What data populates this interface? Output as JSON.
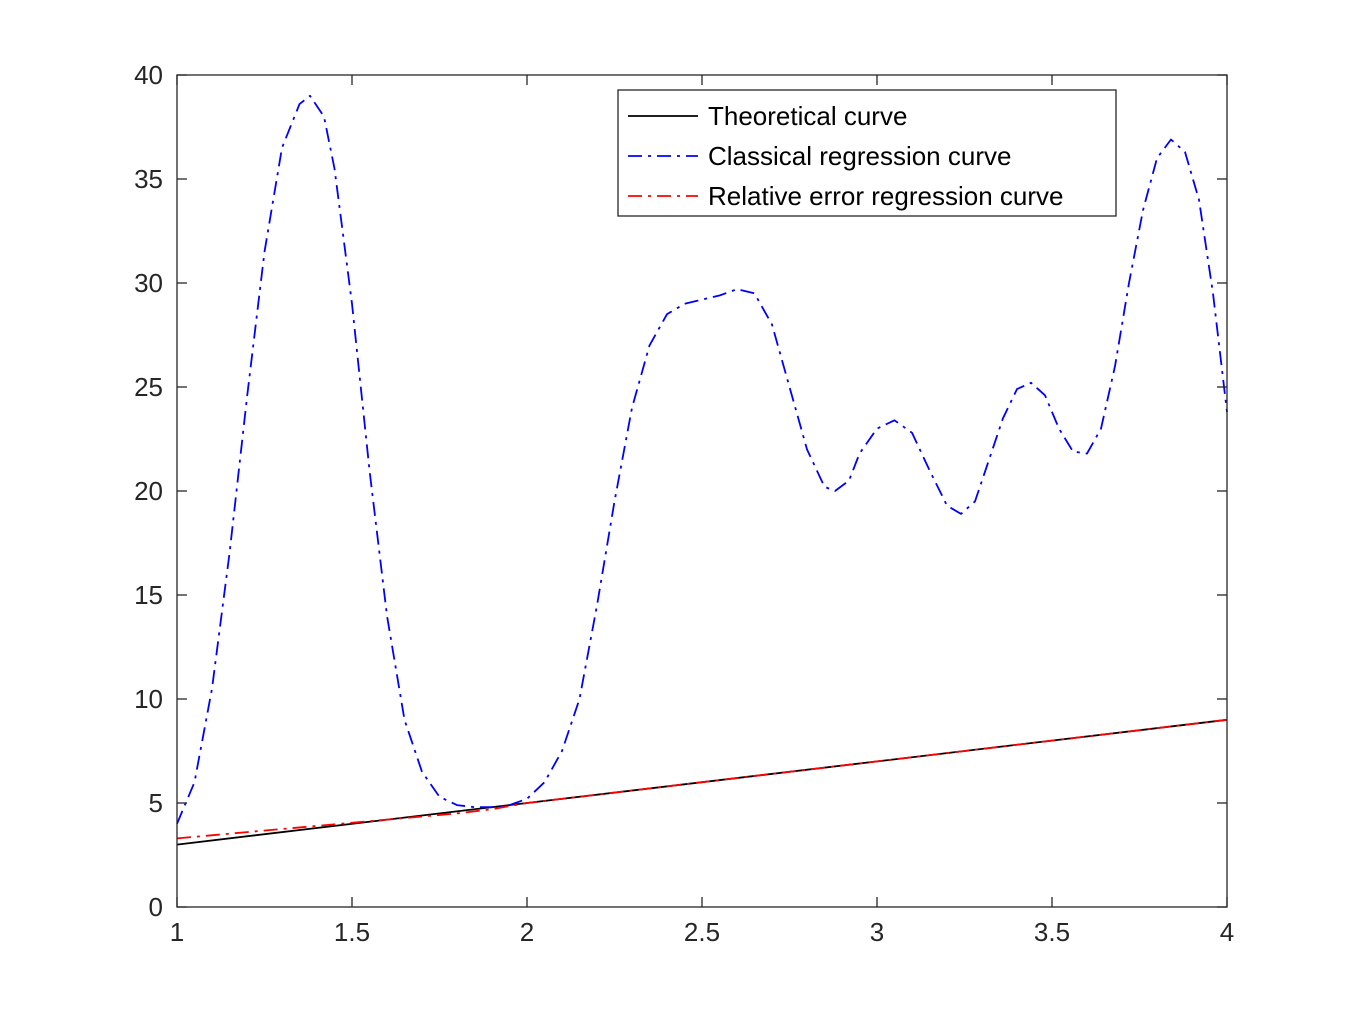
{
  "chart_data": {
    "type": "line",
    "title": "",
    "xlabel": "",
    "ylabel": "",
    "xlim": [
      1,
      4
    ],
    "ylim": [
      0,
      40
    ],
    "grid": false,
    "legend_position": "top-right",
    "x_ticks": [
      "1",
      "1.5",
      "2",
      "2.5",
      "3",
      "3.5",
      "4"
    ],
    "y_ticks": [
      "0",
      "5",
      "10",
      "15",
      "20",
      "25",
      "30",
      "35",
      "40"
    ],
    "series": [
      {
        "name": "Theoretical curve",
        "color": "#000000",
        "style": "solid",
        "points": [
          [
            1,
            3
          ],
          [
            4,
            9
          ]
        ]
      },
      {
        "name": "Classical regression curve",
        "color": "#0000ff",
        "style": "dash-dot",
        "points": [
          [
            1.0,
            4.0
          ],
          [
            1.05,
            6.0
          ],
          [
            1.1,
            10.5
          ],
          [
            1.15,
            17.0
          ],
          [
            1.2,
            24.5
          ],
          [
            1.25,
            31.5
          ],
          [
            1.3,
            36.5
          ],
          [
            1.35,
            38.6
          ],
          [
            1.38,
            39.0
          ],
          [
            1.42,
            38.0
          ],
          [
            1.45,
            35.5
          ],
          [
            1.5,
            29.0
          ],
          [
            1.55,
            21.0
          ],
          [
            1.6,
            14.0
          ],
          [
            1.65,
            9.0
          ],
          [
            1.7,
            6.5
          ],
          [
            1.75,
            5.3
          ],
          [
            1.8,
            4.9
          ],
          [
            1.85,
            4.8
          ],
          [
            1.9,
            4.8
          ],
          [
            1.95,
            4.9
          ],
          [
            2.0,
            5.2
          ],
          [
            2.05,
            6.0
          ],
          [
            2.1,
            7.5
          ],
          [
            2.15,
            10.0
          ],
          [
            2.2,
            14.5
          ],
          [
            2.25,
            19.5
          ],
          [
            2.3,
            24.0
          ],
          [
            2.35,
            27.0
          ],
          [
            2.4,
            28.5
          ],
          [
            2.45,
            29.0
          ],
          [
            2.5,
            29.2
          ],
          [
            2.55,
            29.4
          ],
          [
            2.6,
            29.7
          ],
          [
            2.65,
            29.5
          ],
          [
            2.7,
            28.0
          ],
          [
            2.75,
            25.0
          ],
          [
            2.8,
            22.0
          ],
          [
            2.85,
            20.2
          ],
          [
            2.88,
            20.0
          ],
          [
            2.92,
            20.5
          ],
          [
            2.95,
            21.8
          ],
          [
            3.0,
            23.0
          ],
          [
            3.05,
            23.4
          ],
          [
            3.1,
            22.8
          ],
          [
            3.15,
            21.0
          ],
          [
            3.2,
            19.3
          ],
          [
            3.24,
            18.9
          ],
          [
            3.28,
            19.5
          ],
          [
            3.32,
            21.5
          ],
          [
            3.36,
            23.5
          ],
          [
            3.4,
            24.9
          ],
          [
            3.44,
            25.2
          ],
          [
            3.48,
            24.6
          ],
          [
            3.52,
            23.0
          ],
          [
            3.56,
            21.9
          ],
          [
            3.6,
            21.8
          ],
          [
            3.64,
            23.0
          ],
          [
            3.68,
            26.0
          ],
          [
            3.72,
            30.0
          ],
          [
            3.76,
            33.5
          ],
          [
            3.8,
            36.0
          ],
          [
            3.84,
            36.9
          ],
          [
            3.88,
            36.3
          ],
          [
            3.92,
            34.0
          ],
          [
            3.96,
            29.5
          ],
          [
            4.0,
            23.8
          ]
        ]
      },
      {
        "name": "Relative error regression curve",
        "color": "#ff0000",
        "style": "dash-dot",
        "points": [
          [
            1.0,
            3.3
          ],
          [
            1.2,
            3.6
          ],
          [
            1.4,
            3.9
          ],
          [
            1.6,
            4.2
          ],
          [
            1.8,
            4.5
          ],
          [
            1.9,
            4.7
          ],
          [
            2.0,
            5.0
          ],
          [
            2.5,
            6.0
          ],
          [
            3.0,
            7.0
          ],
          [
            3.5,
            8.0
          ],
          [
            4.0,
            9.0
          ]
        ]
      }
    ]
  }
}
